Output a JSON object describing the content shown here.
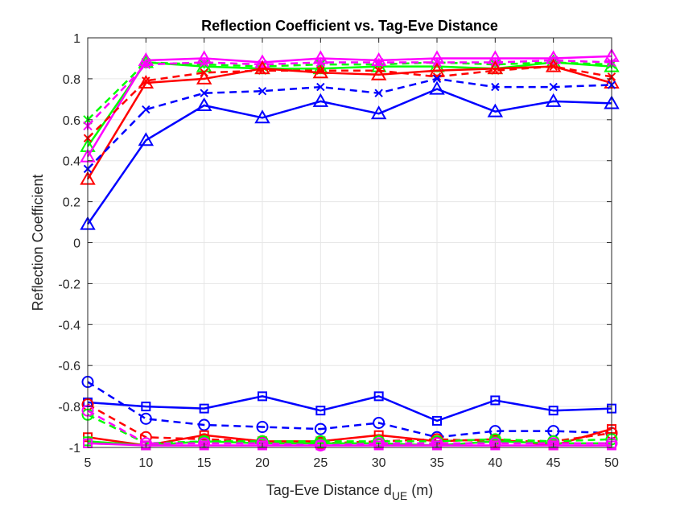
{
  "chart_data": {
    "type": "line",
    "title": "Reflection Coefficient vs. Tag-Eve Distance",
    "xlabel": {
      "main": "Tag-Eve Distance d",
      "sub": "UE",
      "suffix": " (m)"
    },
    "ylabel": "Reflection Coefficient",
    "x": [
      5,
      10,
      15,
      20,
      25,
      30,
      35,
      40,
      45,
      50
    ],
    "xlim": [
      5,
      50
    ],
    "ylim": [
      -1,
      1
    ],
    "xticks": [
      5,
      10,
      15,
      20,
      25,
      30,
      35,
      40,
      45,
      50
    ],
    "yticks": [
      -1,
      -0.8,
      -0.6,
      -0.4,
      -0.2,
      0,
      0.2,
      0.4,
      0.6,
      0.8,
      1
    ],
    "ytick_labels": [
      "-1",
      "-0.8",
      "-0.6",
      "-0.4",
      "-0.2",
      "0",
      "0.2",
      "0.4",
      "0.6",
      "0.8",
      "1"
    ],
    "grid": true,
    "colors": {
      "blue": "#0000ff",
      "red": "#ff0000",
      "green": "#00ff00",
      "magenta": "#ff00ff",
      "axis": "#262626",
      "grid": "#e6e6e6"
    },
    "series": [
      {
        "color": "#00ff00",
        "dash": true,
        "marker": "star",
        "values": [
          0.6,
          0.88,
          0.87,
          0.86,
          0.87,
          0.87,
          0.88,
          0.87,
          0.88,
          0.87
        ]
      },
      {
        "color": "#00ff00",
        "dash": false,
        "marker": "triangle",
        "values": [
          0.47,
          0.88,
          0.86,
          0.85,
          0.85,
          0.86,
          0.86,
          0.85,
          0.88,
          0.86
        ]
      },
      {
        "color": "#ff00ff",
        "dash": true,
        "marker": "star",
        "values": [
          0.57,
          0.87,
          0.88,
          0.87,
          0.88,
          0.88,
          0.88,
          0.88,
          0.89,
          0.88
        ]
      },
      {
        "color": "#ff00ff",
        "dash": false,
        "marker": "triangle",
        "values": [
          0.42,
          0.89,
          0.9,
          0.88,
          0.9,
          0.89,
          0.9,
          0.9,
          0.9,
          0.91
        ]
      },
      {
        "color": "#ff0000",
        "dash": true,
        "marker": "cross",
        "values": [
          0.51,
          0.79,
          0.83,
          0.84,
          0.84,
          0.84,
          0.81,
          0.84,
          0.86,
          0.81
        ]
      },
      {
        "color": "#ff0000",
        "dash": false,
        "marker": "triangle",
        "values": [
          0.31,
          0.78,
          0.8,
          0.85,
          0.83,
          0.82,
          0.84,
          0.85,
          0.86,
          0.78
        ]
      },
      {
        "color": "#0000ff",
        "dash": true,
        "marker": "cross",
        "values": [
          0.36,
          0.65,
          0.73,
          0.74,
          0.76,
          0.73,
          0.8,
          0.76,
          0.76,
          0.77
        ]
      },
      {
        "color": "#0000ff",
        "dash": false,
        "marker": "triangle",
        "values": [
          0.09,
          0.5,
          0.67,
          0.61,
          0.69,
          0.63,
          0.75,
          0.64,
          0.69,
          0.68
        ]
      },
      {
        "color": "#0000ff",
        "dash": false,
        "marker": "square",
        "values": [
          -0.78,
          -0.8,
          -0.81,
          -0.75,
          -0.82,
          -0.75,
          -0.87,
          -0.77,
          -0.82,
          -0.81
        ]
      },
      {
        "color": "#0000ff",
        "dash": true,
        "marker": "circle",
        "values": [
          -0.68,
          -0.86,
          -0.89,
          -0.9,
          -0.91,
          -0.88,
          -0.95,
          -0.92,
          -0.92,
          -0.93
        ]
      },
      {
        "color": "#ff0000",
        "dash": true,
        "marker": "circle",
        "values": [
          -0.79,
          -0.95,
          -0.96,
          -0.97,
          -0.98,
          -0.97,
          -0.96,
          -0.97,
          -0.97,
          -0.93
        ]
      },
      {
        "color": "#ff0000",
        "dash": false,
        "marker": "square",
        "values": [
          -0.95,
          -0.99,
          -0.94,
          -0.97,
          -0.97,
          -0.94,
          -0.97,
          -0.96,
          -0.99,
          -0.91
        ]
      },
      {
        "color": "#00ff00",
        "dash": true,
        "marker": "circle",
        "values": [
          -0.84,
          -0.98,
          -0.97,
          -0.97,
          -0.97,
          -0.97,
          -0.97,
          -0.96,
          -0.97,
          -0.96
        ]
      },
      {
        "color": "#00ff00",
        "dash": false,
        "marker": "square",
        "values": [
          -0.97,
          -0.99,
          -0.97,
          -0.98,
          -0.98,
          -0.98,
          -0.99,
          -0.97,
          -0.98,
          -0.98
        ]
      },
      {
        "color": "#ff00ff",
        "dash": true,
        "marker": "circle",
        "values": [
          -0.82,
          -0.98,
          -0.98,
          -0.98,
          -0.99,
          -0.98,
          -0.98,
          -0.98,
          -0.98,
          -0.98
        ]
      },
      {
        "color": "#ff00ff",
        "dash": false,
        "marker": "square",
        "values": [
          -0.98,
          -0.99,
          -0.99,
          -0.99,
          -0.99,
          -0.99,
          -0.99,
          -0.99,
          -0.99,
          -0.99
        ]
      }
    ]
  }
}
